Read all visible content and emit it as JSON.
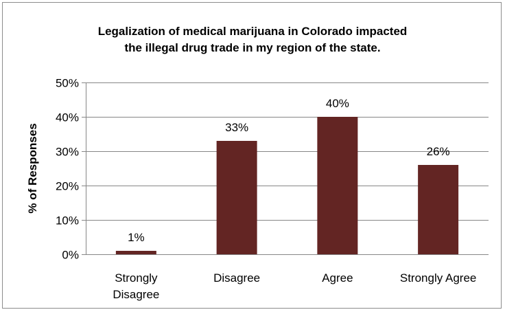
{
  "chart_data": {
    "type": "bar",
    "title_lines": [
      "Legalization of medical marijuana in Colorado impacted",
      "the illegal drug trade in my region of the state."
    ],
    "xlabel": "",
    "ylabel": "% of Responses",
    "categories": [
      [
        "Strongly",
        "Disagree"
      ],
      [
        "Disagree"
      ],
      [
        "Agree"
      ],
      [
        "Strongly Agree"
      ]
    ],
    "values": [
      1,
      33,
      40,
      26
    ],
    "data_labels": [
      "1%",
      "33%",
      "40%",
      "26%"
    ],
    "ylim": [
      0,
      50
    ],
    "yticks": [
      0,
      10,
      20,
      30,
      40,
      50
    ],
    "ytick_labels": [
      "0%",
      "10%",
      "20%",
      "30%",
      "40%",
      "50%"
    ],
    "grid": true,
    "legend": "none",
    "colors": {
      "bar": "#632523",
      "grid": "#868686",
      "axis": "#868686"
    }
  }
}
